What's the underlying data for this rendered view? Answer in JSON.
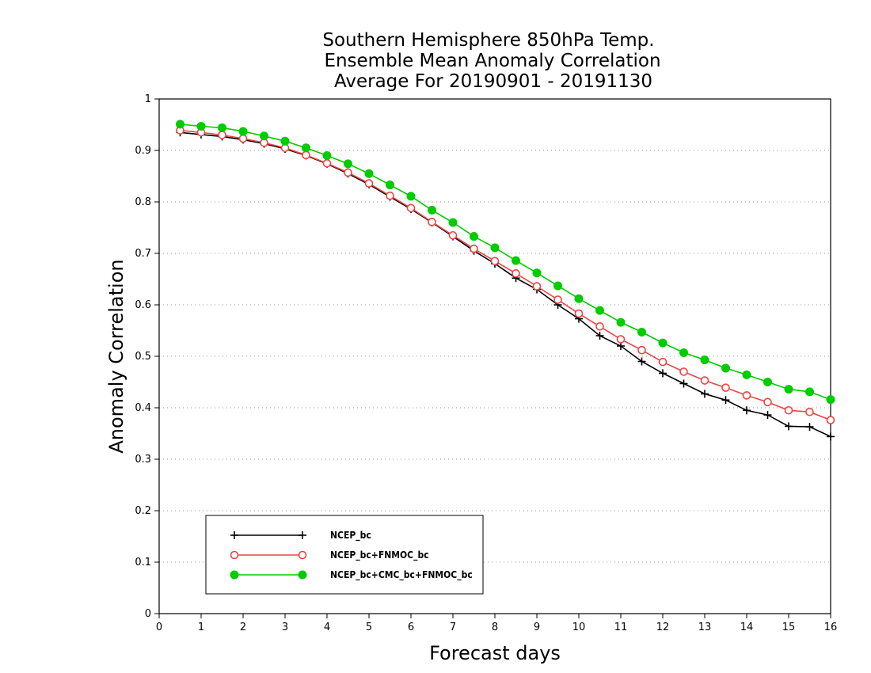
{
  "chart_data": {
    "type": "line",
    "title": [
      "Southern Hemisphere 850hPa Temp.",
      "Ensemble Mean Anomaly Correlation",
      "Average For 20190901 - 20191130"
    ],
    "xlabel": "Forecast days",
    "ylabel": "Anomaly Correlation",
    "xlim": [
      0,
      16
    ],
    "ylim": [
      0,
      1
    ],
    "xticks": [
      "0",
      "1",
      "2",
      "3",
      "4",
      "5",
      "6",
      "7",
      "8",
      "9",
      "10",
      "11",
      "12",
      "13",
      "14",
      "15",
      "16"
    ],
    "yticks": [
      "0",
      "0.1",
      "0.2",
      "0.3",
      "0.4",
      "0.5",
      "0.6",
      "0.7",
      "0.8",
      "0.9",
      "1"
    ],
    "grid": "horizontal dotted",
    "legend_position": "bottom-left",
    "x": [
      0.5,
      1,
      1.5,
      2,
      2.5,
      3,
      3.5,
      4,
      4.5,
      5,
      5.5,
      6,
      6.5,
      7,
      7.5,
      8,
      8.5,
      9,
      9.5,
      10,
      10.5,
      11,
      11.5,
      12,
      12.5,
      13,
      13.5,
      14,
      14.5,
      15,
      15.5,
      16
    ],
    "series": [
      {
        "name": "NCEP_bc",
        "color": "#000000",
        "marker": "plus",
        "values": [
          0.935,
          0.931,
          0.927,
          0.921,
          0.913,
          0.903,
          0.89,
          0.874,
          0.855,
          0.834,
          0.81,
          0.786,
          0.76,
          0.733,
          0.705,
          0.68,
          0.652,
          0.63,
          0.6,
          0.573,
          0.54,
          0.52,
          0.49,
          0.467,
          0.447,
          0.427,
          0.415,
          0.395,
          0.386,
          0.364,
          0.363,
          0.344
        ]
      },
      {
        "name": "NCEP_bc+FNMOC_bc",
        "color": "#ee4444",
        "marker": "open-circle",
        "values": [
          0.939,
          0.935,
          0.93,
          0.923,
          0.915,
          0.905,
          0.891,
          0.875,
          0.857,
          0.836,
          0.812,
          0.788,
          0.761,
          0.735,
          0.709,
          0.685,
          0.661,
          0.636,
          0.61,
          0.583,
          0.558,
          0.533,
          0.512,
          0.489,
          0.47,
          0.453,
          0.439,
          0.424,
          0.411,
          0.395,
          0.392,
          0.376
        ]
      },
      {
        "name": "NCEP_bc+CMC_bc+FNMOC_bc",
        "color": "#00cc00",
        "marker": "filled-circle",
        "values": [
          0.951,
          0.947,
          0.944,
          0.937,
          0.928,
          0.918,
          0.905,
          0.89,
          0.874,
          0.855,
          0.833,
          0.811,
          0.784,
          0.76,
          0.733,
          0.711,
          0.686,
          0.662,
          0.637,
          0.612,
          0.589,
          0.566,
          0.547,
          0.526,
          0.507,
          0.493,
          0.477,
          0.464,
          0.45,
          0.436,
          0.431,
          0.416
        ]
      }
    ]
  }
}
